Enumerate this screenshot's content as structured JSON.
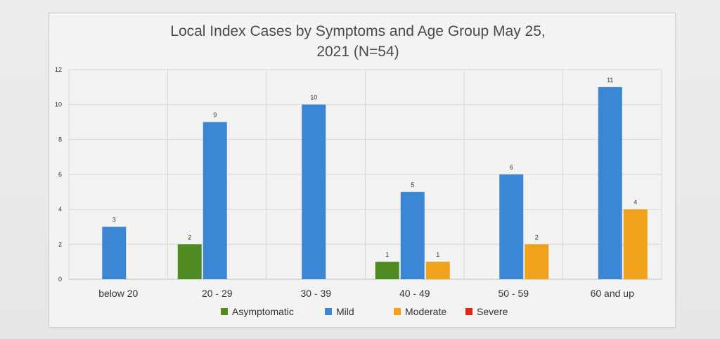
{
  "chart_data": {
    "type": "bar",
    "title_lines": [
      "Local Index Cases by Symptoms and Age Group May 25,",
      "2021 (N=54)"
    ],
    "xlabel": "",
    "ylabel": "",
    "ylim": [
      0,
      12
    ],
    "yticks": [
      0,
      2,
      4,
      6,
      8,
      10,
      12
    ],
    "grid": true,
    "legend_position": "bottom",
    "categories": [
      "below 20",
      "20 - 29",
      "30 - 39",
      "40 - 49",
      "50 - 59",
      "60 and up"
    ],
    "series": [
      {
        "name": "Asymptomatic",
        "color": "#4f8a22",
        "values": [
          0,
          2,
          0,
          1,
          0,
          0
        ]
      },
      {
        "name": "Mild",
        "color": "#3c86d6",
        "values": [
          3,
          9,
          10,
          5,
          6,
          11
        ]
      },
      {
        "name": "Moderate",
        "color": "#f0a21c",
        "values": [
          0,
          0,
          0,
          1,
          2,
          4
        ]
      },
      {
        "name": "Severe",
        "color": "#e0231b",
        "values": [
          0,
          0,
          0,
          0,
          0,
          0
        ]
      }
    ]
  }
}
